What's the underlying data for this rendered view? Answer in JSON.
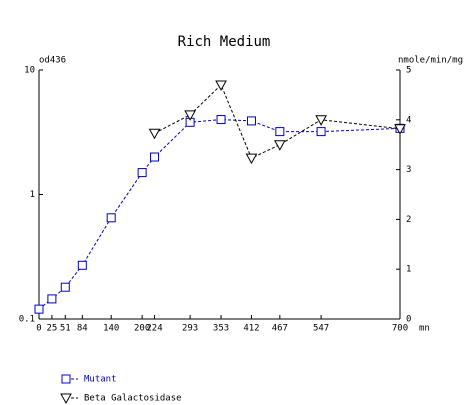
{
  "chart_data": {
    "type": "line",
    "title": "Rich Medium",
    "ylabel": "od436",
    "y2label": "nmole/min/mg",
    "xlabel": "mn",
    "x": [
      0,
      25,
      51,
      84,
      140,
      200,
      224,
      293,
      353,
      412,
      467,
      547,
      700
    ],
    "xlim": [
      0,
      700
    ],
    "xticks": [
      0,
      25,
      51,
      84,
      140,
      200,
      224,
      293,
      353,
      412,
      467,
      547,
      700
    ],
    "ylim": [
      0.1,
      10
    ],
    "yticks": [
      0.1,
      1,
      10
    ],
    "ylog": true,
    "y2lim": [
      0,
      5
    ],
    "y2ticks": [
      0,
      1,
      2,
      3,
      4,
      5
    ],
    "series": [
      {
        "name": "Mutant",
        "color": "#0000cc",
        "marker": "square",
        "values": [
          0.12,
          0.145,
          0.18,
          0.27,
          0.65,
          1.5,
          2.0,
          3.8,
          4.0,
          3.9,
          3.2,
          3.2,
          3.4
        ]
      },
      {
        "name": "Beta Galactosidase",
        "color": "#000000",
        "marker": "triangle-down",
        "axis": "y2",
        "values": [
          null,
          null,
          null,
          null,
          null,
          null,
          3.73,
          4.1,
          4.7,
          3.23,
          3.5,
          4.0,
          3.82
        ]
      }
    ]
  }
}
